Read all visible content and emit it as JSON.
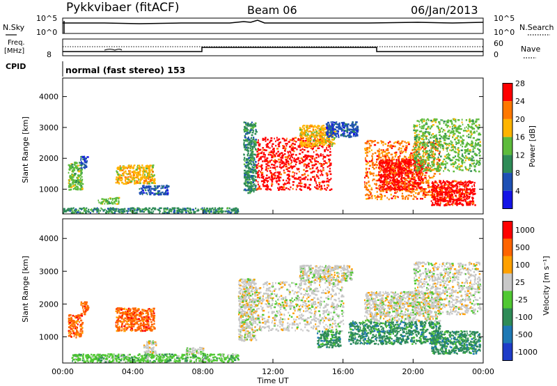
{
  "header": {
    "station": "Pykkvibaer (fitACF)",
    "beam": "Beam 06",
    "date": "06/Jan/2013"
  },
  "noise_panel": {
    "left_label": "N.Sky",
    "left_ticks": [
      "10^5",
      "10^0"
    ],
    "right_ticks": [
      "10^5",
      "10^0"
    ],
    "right_label": "N.Search"
  },
  "freq_panel": {
    "left_label_1": "Freq.",
    "left_label_2": "[MHz]",
    "left_tick": "8",
    "right_ticks": [
      "60",
      "0"
    ],
    "right_label": "Nave"
  },
  "cpid_panel": {
    "label": "CPID",
    "text": "normal (fast stereo) 153"
  },
  "chart_data": [
    {
      "type": "heatmap",
      "quantity": "Power",
      "ylabel": "Slant Range [km]",
      "yticks": [
        "1000",
        "2000",
        "3000",
        "4000"
      ],
      "ylim": [
        200,
        4600
      ],
      "xlim": [
        0,
        24
      ],
      "colorbar_label": "Power [dB]",
      "colorbar_ticks": [
        "4",
        "8",
        "12",
        "16",
        "20",
        "24",
        "28"
      ],
      "colors": [
        "#1414e6",
        "#1e50b4",
        "#2e8b57",
        "#5dbb3c",
        "#ffb400",
        "#ff7800",
        "#ff0000"
      ],
      "regions": [
        {
          "t": [
            0.3,
            1.1
          ],
          "r": [
            1000,
            1900
          ],
          "level": 3
        },
        {
          "t": [
            1.0,
            1.4
          ],
          "r": [
            1700,
            2100
          ],
          "level": 1
        },
        {
          "t": [
            3.0,
            5.2
          ],
          "r": [
            1200,
            1800
          ],
          "level": 4
        },
        {
          "t": [
            4.3,
            6.0
          ],
          "r": [
            850,
            1150
          ],
          "level": 1
        },
        {
          "t": [
            2.0,
            3.2
          ],
          "r": [
            550,
            750
          ],
          "level": 3
        },
        {
          "t": [
            0.0,
            10.0
          ],
          "r": [
            250,
            420
          ],
          "level": 2
        },
        {
          "t": [
            10.3,
            11.0
          ],
          "r": [
            900,
            3200
          ],
          "level": 2
        },
        {
          "t": [
            11.0,
            15.3
          ],
          "r": [
            1000,
            2700
          ],
          "level": 6
        },
        {
          "t": [
            13.5,
            15.5
          ],
          "r": [
            2400,
            3100
          ],
          "level": 4
        },
        {
          "t": [
            15.0,
            16.8
          ],
          "r": [
            2700,
            3200
          ],
          "level": 1
        },
        {
          "t": [
            17.2,
            21.5
          ],
          "r": [
            700,
            2600
          ],
          "level": 5
        },
        {
          "t": [
            18.0,
            20.5
          ],
          "r": [
            1000,
            2000
          ],
          "level": 6
        },
        {
          "t": [
            21.0,
            23.5
          ],
          "r": [
            500,
            1300
          ],
          "level": 6
        },
        {
          "t": [
            20.0,
            23.8
          ],
          "r": [
            1600,
            3300
          ],
          "level": 3
        }
      ]
    },
    {
      "type": "heatmap",
      "quantity": "Velocity",
      "ylabel": "Slant Range [km]",
      "yticks": [
        "1000",
        "2000",
        "3000",
        "4000"
      ],
      "ylim": [
        200,
        4600
      ],
      "xlim": [
        0,
        24
      ],
      "xticks": [
        "00:00",
        "04:00",
        "08:00",
        "12:00",
        "16:00",
        "20:00",
        "00:00"
      ],
      "xlabel": "Time UT",
      "colorbar_label": "Velocity [m s⁻¹]",
      "colorbar_ticks": [
        "1000",
        "500",
        "100",
        "25",
        "-25",
        "-100",
        "-500",
        "-1000"
      ],
      "colors": [
        "#1e3cc8",
        "#1e78b4",
        "#2e8b57",
        "#50c832",
        "#c8c8c8",
        "#ffa000",
        "#ff6400",
        "#ff0000"
      ],
      "regions": [
        {
          "t": [
            0.3,
            1.1
          ],
          "r": [
            1000,
            1700
          ],
          "level": 6
        },
        {
          "t": [
            1.0,
            1.4
          ],
          "r": [
            1700,
            2100
          ],
          "level": 6
        },
        {
          "t": [
            3.0,
            5.2
          ],
          "r": [
            1200,
            1900
          ],
          "level": 6
        },
        {
          "t": [
            4.6,
            5.3
          ],
          "r": [
            500,
            900
          ],
          "level": 4
        },
        {
          "t": [
            7.0,
            8.0
          ],
          "r": [
            500,
            700
          ],
          "level": 4
        },
        {
          "t": [
            0.5,
            10.0
          ],
          "r": [
            250,
            500
          ],
          "level": 3
        },
        {
          "t": [
            10.0,
            11.0
          ],
          "r": [
            900,
            2800
          ],
          "level": 4
        },
        {
          "t": [
            11.0,
            16.0
          ],
          "r": [
            1200,
            2700
          ],
          "level": 4
        },
        {
          "t": [
            13.5,
            16.5
          ],
          "r": [
            2700,
            3200
          ],
          "level": 4
        },
        {
          "t": [
            14.5,
            15.8
          ],
          "r": [
            700,
            1200
          ],
          "level": 2
        },
        {
          "t": [
            16.3,
            21.5
          ],
          "r": [
            800,
            1500
          ],
          "level": 2
        },
        {
          "t": [
            17.2,
            21.5
          ],
          "r": [
            1500,
            2400
          ],
          "level": 4
        },
        {
          "t": [
            21.0,
            23.8
          ],
          "r": [
            500,
            1200
          ],
          "level": 2
        },
        {
          "t": [
            20.0,
            23.8
          ],
          "r": [
            1700,
            3300
          ],
          "level": 4
        }
      ]
    }
  ]
}
